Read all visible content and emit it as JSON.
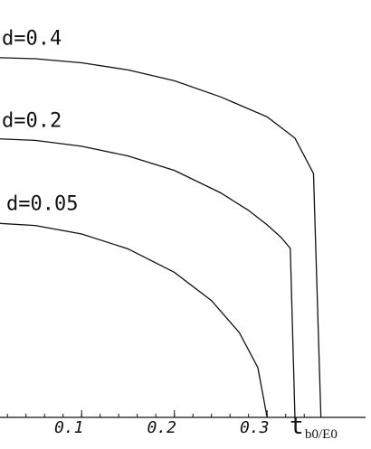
{
  "chart_data": {
    "type": "line",
    "xlabel": {
      "main": "t",
      "sub": "b0/E0"
    },
    "xlim": [
      0,
      0.358
    ],
    "x_ticks": [
      {
        "value": 0.1,
        "label": "0.1"
      },
      {
        "value": 0.2,
        "label": "0.2"
      },
      {
        "value": 0.3,
        "label": "0.3"
      }
    ],
    "series": [
      {
        "name": "d=0.05",
        "x": [
          0,
          0.05,
          0.1,
          0.15,
          0.2,
          0.24,
          0.27,
          0.29,
          0.3
        ],
        "y": [
          0.3,
          0.2958,
          0.2828,
          0.2598,
          0.2236,
          0.18,
          0.1308,
          0.0768,
          0
        ]
      },
      {
        "name": "d=0.2",
        "x": [
          0,
          0.05,
          0.1,
          0.15,
          0.2,
          0.25,
          0.28,
          0.3,
          0.315,
          0.325,
          0.33
        ],
        "y": [
          0.43,
          0.427,
          0.418,
          0.403,
          0.3807,
          0.3461,
          0.3191,
          0.2968,
          0.2775,
          0.2606,
          0
        ]
      },
      {
        "name": "d=0.4",
        "x": [
          0,
          0.05,
          0.1,
          0.15,
          0.2,
          0.25,
          0.3,
          0.33,
          0.35,
          0.358
        ],
        "y": [
          0.555,
          0.5529,
          0.5466,
          0.5357,
          0.519,
          0.494,
          0.4633,
          0.4305,
          0.376,
          0
        ]
      }
    ]
  }
}
